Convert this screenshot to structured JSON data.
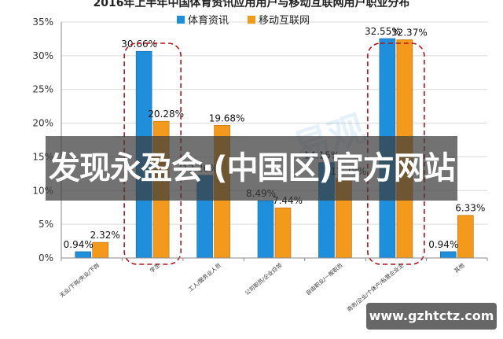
{
  "chart_data": {
    "type": "bar",
    "title": "2016年上半年中国体育资讯应用用户与移动互联网用户职业分布",
    "ylim": [
      0,
      35
    ],
    "yticks": [
      "0%",
      "5%",
      "10%",
      "15%",
      "20%",
      "25%",
      "30%",
      "35%"
    ],
    "grid": true,
    "legend_position": "top",
    "categories": [
      "无业/下岗/失业/下岗",
      "学生",
      "工人/服务业人员",
      "公司职员/企业白领",
      "自由职业/一般职员",
      "商务/企业/个体户/私营企业主",
      "其他"
    ],
    "series": [
      {
        "name": "体育资讯",
        "color": "#1f8fdc",
        "values": [
          0.94,
          30.66,
          12.26,
          8.49,
          14.15,
          32.55,
          0.94
        ],
        "labels": [
          "0.94%",
          "30.66%",
          "12.26%",
          "8.49%",
          "14.15%",
          "32.55%",
          "0.94%"
        ]
      },
      {
        "name": "移动互联网",
        "color": "#f39a1d",
        "values": [
          2.32,
          20.28,
          19.68,
          7.44,
          11.78,
          32.37,
          6.33
        ],
        "labels": [
          "2.32%",
          "20.28%",
          "19.68%",
          "7.44%",
          "11.78%",
          "32.37%",
          "6.33%"
        ]
      }
    ],
    "highlighted_categories": [
      1,
      5
    ]
  },
  "watermark": "易观",
  "overlay": {
    "banner_text": "发现永盈会·(中国区)官方网站",
    "url_text": "www.gzhtctz.com"
  }
}
